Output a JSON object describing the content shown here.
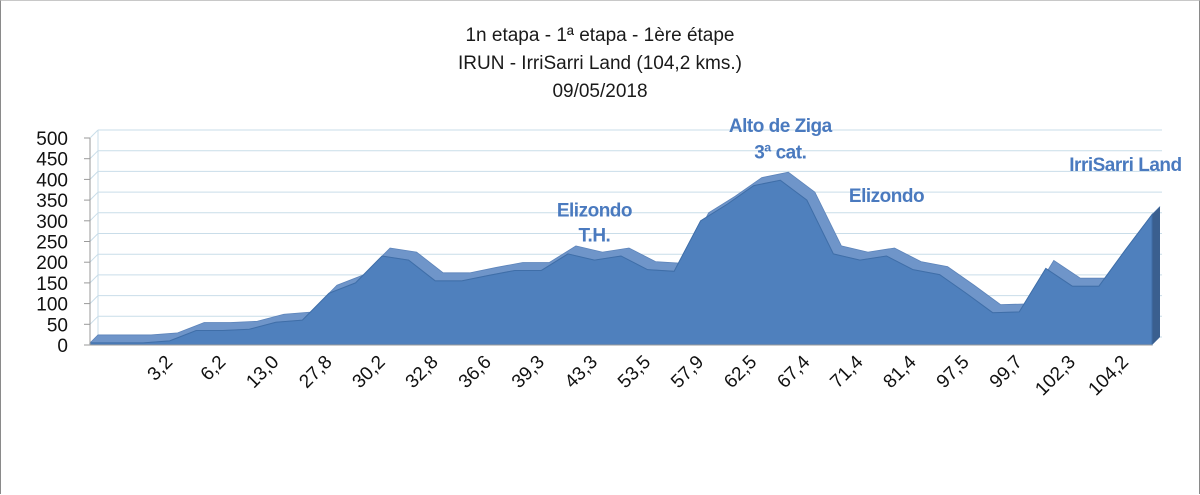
{
  "chart_data": {
    "type": "area",
    "title_lines": [
      "1n etapa - 1ª etapa - 1ère étape",
      "IRUN - IrriSarri Land (104,2 kms.)",
      "09/05/2018"
    ],
    "xlabel": "",
    "ylabel": "",
    "ylim": [
      0,
      500
    ],
    "yticks": [
      0,
      50,
      100,
      150,
      200,
      250,
      300,
      350,
      400,
      450,
      500
    ],
    "grid": true,
    "x_tick_labels": [
      "",
      "",
      "",
      "3,2",
      "",
      "6,2",
      "",
      "13,0",
      "",
      "27,8",
      "",
      "30,2",
      "",
      "32,8",
      "",
      "36,6",
      "",
      "39,3",
      "",
      "43,3",
      "",
      "53,5",
      "",
      "57,9",
      "",
      "62,5",
      "",
      "67,4",
      "",
      "71,4",
      "",
      "81,4",
      "",
      "97,5",
      "",
      "99,7",
      "",
      "102,3",
      "",
      "104,2"
    ],
    "values": [
      5,
      5,
      5,
      10,
      35,
      35,
      38,
      55,
      60,
      125,
      150,
      215,
      205,
      155,
      155,
      168,
      180,
      180,
      220,
      205,
      215,
      182,
      178,
      300,
      340,
      385,
      398,
      350,
      220,
      205,
      215,
      182,
      170,
      125,
      78,
      80,
      185,
      142,
      142,
      230,
      315
    ],
    "annotations": [
      {
        "text": "Elizondo",
        "x_index": 19,
        "value": 310
      },
      {
        "text": "T.H.",
        "x_index": 19,
        "value": 250
      },
      {
        "text": "Alto de Ziga",
        "x_index": 26,
        "value": 515
      },
      {
        "text": "3ª cat.",
        "x_index": 26,
        "value": 450
      },
      {
        "text": "Elizondo",
        "x_index": 30,
        "value": 345
      },
      {
        "text": "IrriSarri Land",
        "x_index": 39,
        "value": 420
      }
    ],
    "colors": {
      "fill": "#4f80bd",
      "side": "#3a5f8f",
      "grid": "#c9dde9",
      "annotation": "#4a7abf"
    }
  }
}
